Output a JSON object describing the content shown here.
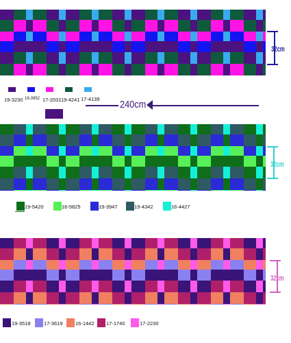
{
  "bands": [
    {
      "name": "band-1",
      "colors": [
        "#4b1280",
        "#1414f0",
        "#ff14e6",
        "#0f5a3c",
        "#3aaaf0"
      ],
      "height_label": "32cm",
      "label_color": "#1c1c9c",
      "legend": [
        {
          "code": "19-3230",
          "color": "#4b1280"
        },
        {
          "code": "19-3952",
          "color": "#1414f0"
        },
        {
          "code": "17-2031",
          "color": "#ff14e6"
        },
        {
          "code": "19-4241",
          "color": "#0f5a3c"
        },
        {
          "code": "17-4139",
          "color": "#3aaaf0"
        }
      ]
    },
    {
      "name": "band-2",
      "colors": [
        "#0f6e1a",
        "#58f058",
        "#2a2ad6",
        "#2e5a64",
        "#14f0d8"
      ],
      "height_label": "32cm",
      "label_color": "#2fd0d0",
      "legend": [
        {
          "code": "19-5420",
          "color": "#0f6e1a"
        },
        {
          "code": "16-5825",
          "color": "#58f058"
        },
        {
          "code": "19-3947",
          "color": "#2a2ad6"
        },
        {
          "code": "19-4342",
          "color": "#2e5a64"
        },
        {
          "code": "16-4427",
          "color": "#14f0d8"
        }
      ]
    },
    {
      "name": "band-3",
      "colors": [
        "#3a1478",
        "#8a80f0",
        "#f08060",
        "#b0206a",
        "#ff5aea"
      ],
      "height_label": "32cm",
      "label_color": "#d060c0",
      "legend": [
        {
          "code": "19-3518",
          "color": "#3a1478"
        },
        {
          "code": "17-3619",
          "color": "#8a80f0"
        },
        {
          "code": "16-1442",
          "color": "#f08060"
        },
        {
          "code": "17-1740",
          "color": "#b0206a"
        },
        {
          "code": "17-2230",
          "color": "#ff5aea"
        }
      ]
    }
  ],
  "measure": {
    "label": "240cm",
    "color": "#3a1a7a"
  },
  "accent_swatch_color": "#4b1280"
}
